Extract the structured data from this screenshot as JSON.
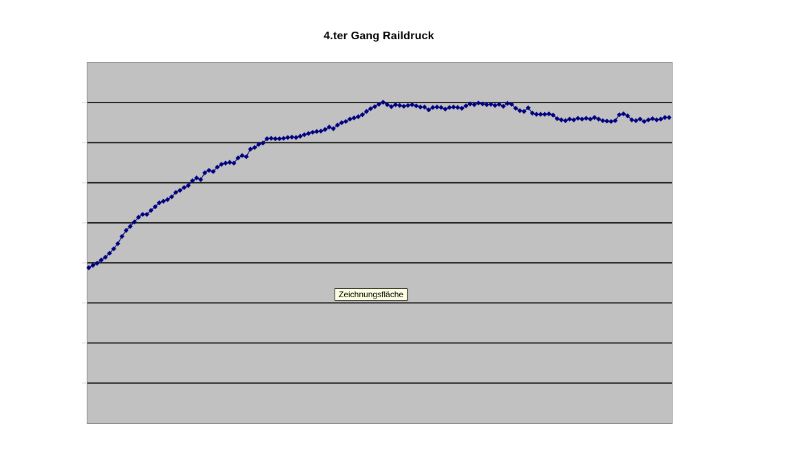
{
  "chart": {
    "title": "4.ter Gang Raildruck",
    "plot_bg_color": "#c1c1c1",
    "plot_border_color": "#858585",
    "grid_color": "#000000",
    "series_color": "#000080",
    "tick_color": "#e2e2e2"
  },
  "tooltip": {
    "label": "Zeichnungsfläche",
    "bg_color": "#ffffe1"
  },
  "chart_data": {
    "type": "line",
    "title": "4.ter Gang Raildruck",
    "marker": "diamond",
    "xlabel": "",
    "ylabel": "",
    "x_tick_labels_visible": false,
    "y_tick_labels_visible": false,
    "legend": false,
    "grid": "horizontal, 8 interior gridlines (9 equal bands)",
    "ylim": [
      0,
      9
    ],
    "y_unit_note": "values in gridline units above bottom axis (no numeric labels shown in image)",
    "values": [
      3.88,
      3.94,
      3.99,
      4.07,
      4.14,
      4.24,
      4.35,
      4.48,
      4.66,
      4.81,
      4.91,
      5.02,
      5.14,
      5.21,
      5.21,
      5.31,
      5.4,
      5.5,
      5.54,
      5.58,
      5.65,
      5.76,
      5.81,
      5.88,
      5.93,
      6.05,
      6.12,
      6.08,
      6.25,
      6.31,
      6.28,
      6.39,
      6.46,
      6.49,
      6.51,
      6.49,
      6.62,
      6.68,
      6.65,
      6.84,
      6.88,
      6.96,
      6.99,
      7.1,
      7.11,
      7.1,
      7.1,
      7.11,
      7.13,
      7.14,
      7.13,
      7.16,
      7.2,
      7.23,
      7.26,
      7.28,
      7.29,
      7.33,
      7.39,
      7.35,
      7.44,
      7.5,
      7.53,
      7.59,
      7.62,
      7.65,
      7.7,
      7.78,
      7.85,
      7.9,
      7.96,
      8.01,
      7.95,
      7.9,
      7.95,
      7.93,
      7.91,
      7.93,
      7.95,
      7.92,
      7.89,
      7.89,
      7.82,
      7.88,
      7.89,
      7.88,
      7.84,
      7.88,
      7.89,
      7.88,
      7.86,
      7.92,
      7.97,
      7.95,
      7.99,
      7.97,
      7.95,
      7.96,
      7.93,
      7.96,
      7.91,
      7.98,
      7.96,
      7.86,
      7.8,
      7.78,
      7.87,
      7.74,
      7.71,
      7.71,
      7.71,
      7.72,
      7.69,
      7.6,
      7.57,
      7.55,
      7.59,
      7.57,
      7.61,
      7.59,
      7.61,
      7.59,
      7.63,
      7.59,
      7.55,
      7.54,
      7.53,
      7.55,
      7.7,
      7.72,
      7.67,
      7.57,
      7.55,
      7.59,
      7.53,
      7.57,
      7.6,
      7.57,
      7.59,
      7.63,
      7.63
    ]
  }
}
